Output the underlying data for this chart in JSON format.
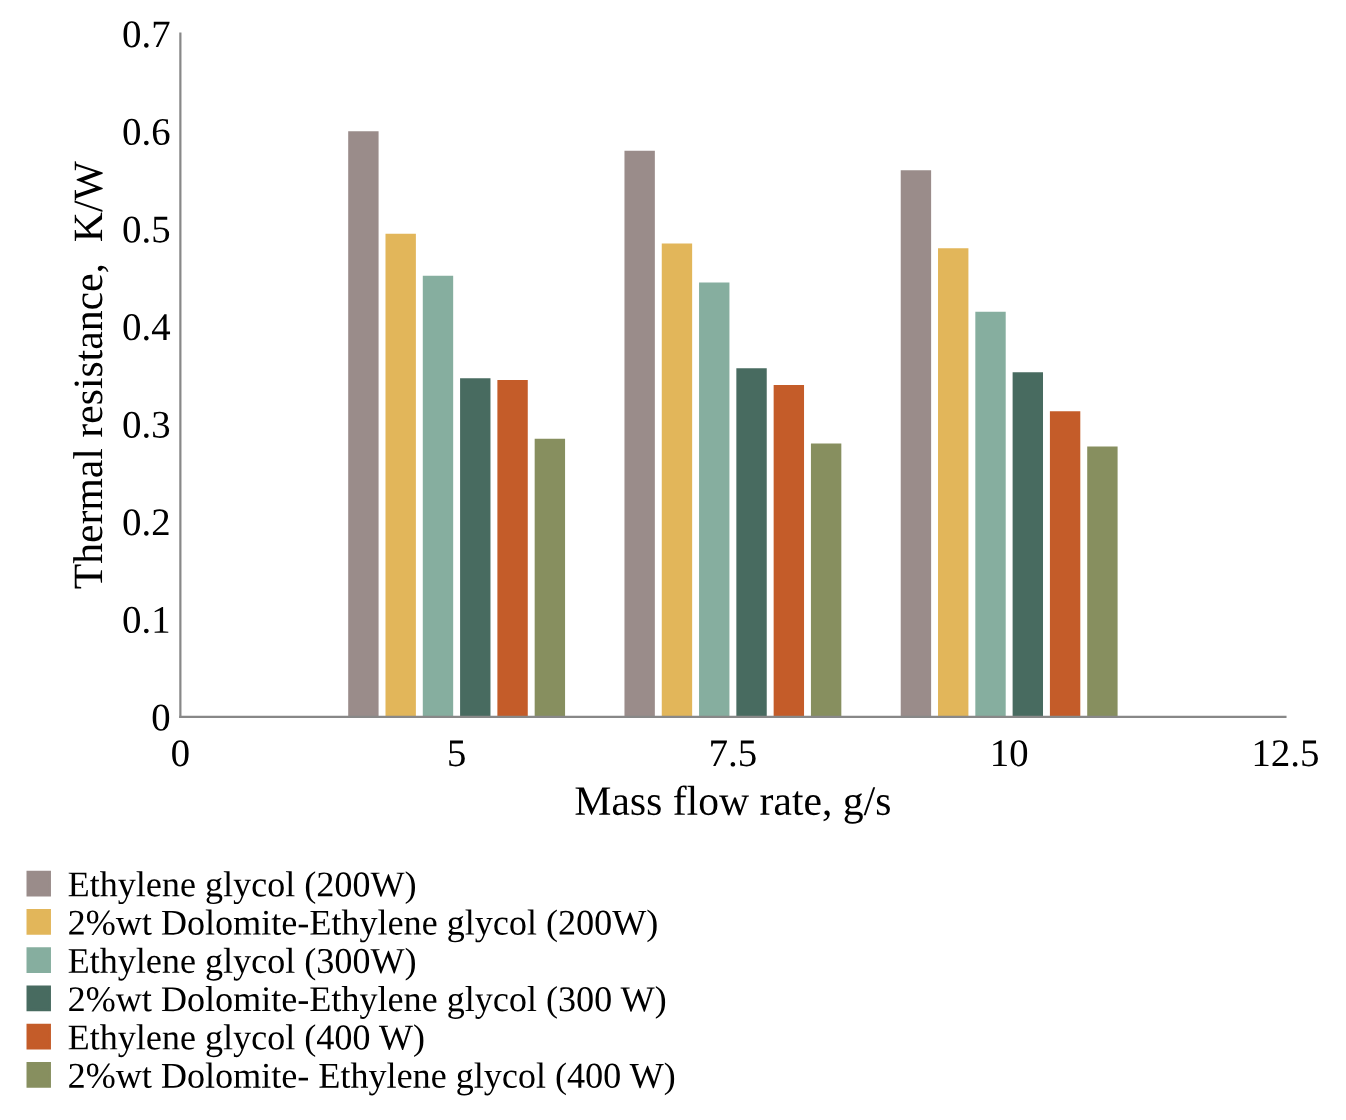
{
  "chart_data": {
    "type": "bar",
    "xlabel": "Mass flow rate, g/s",
    "ylabel": "Thermal resistance,  K/W",
    "categories": [
      "0",
      "5",
      "7.5",
      "10",
      "12.5"
    ],
    "series": [
      {
        "name": "Ethylene glycol (200W)",
        "color": "#9a8c8a",
        "values": [
          null,
          0.6,
          0.58,
          0.56,
          null
        ]
      },
      {
        "name": "2%wt Dolomite-Ethylene glycol (200W)",
        "color": "#e2b65a",
        "values": [
          null,
          0.495,
          0.485,
          0.48,
          null
        ]
      },
      {
        "name": "Ethylene glycol (300W)",
        "color": "#86ae9f",
        "values": [
          null,
          0.452,
          0.445,
          0.415,
          null
        ]
      },
      {
        "name": "2%wt Dolomite-Ethylene glycol (300 W)",
        "color": "#486b60",
        "values": [
          null,
          0.347,
          0.357,
          0.353,
          null
        ]
      },
      {
        "name": "Ethylene glycol (400 W)",
        "color": "#c45c29",
        "values": [
          null,
          0.345,
          0.34,
          0.313,
          null
        ]
      },
      {
        "name": "2%wt Dolomite- Ethylene glycol (400 W)",
        "color": "#878f5f",
        "values": [
          null,
          0.285,
          0.28,
          0.277,
          null
        ]
      }
    ],
    "ylim": [
      0,
      0.7
    ],
    "yticks": [
      0,
      0.1,
      0.2,
      0.3,
      0.4,
      0.5,
      0.6,
      0.7
    ],
    "grid": false,
    "legend": "bottom"
  }
}
